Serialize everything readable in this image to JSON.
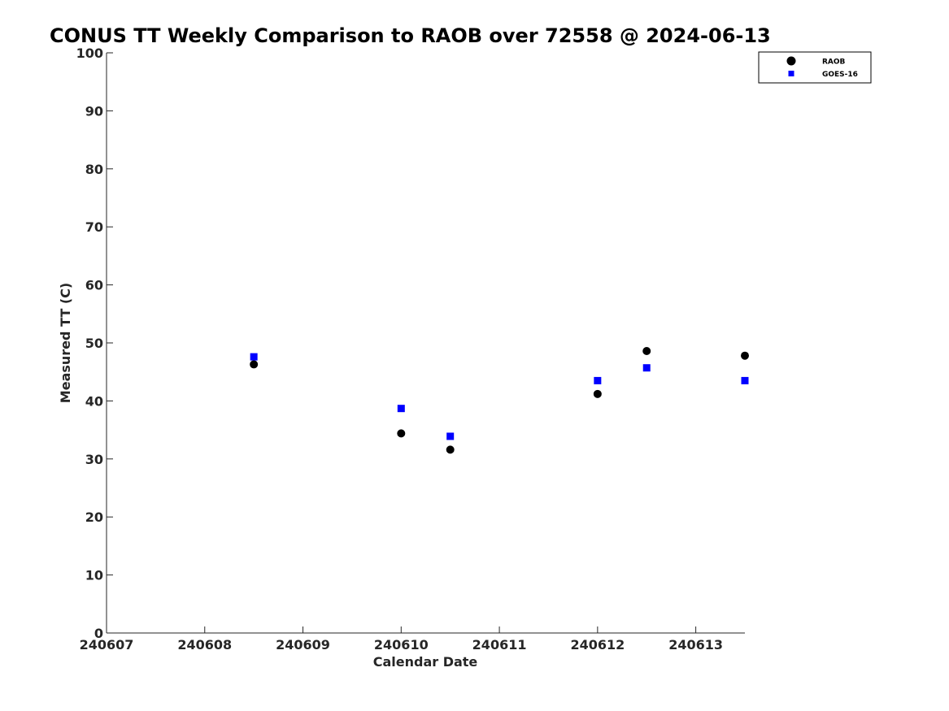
{
  "chart_data": {
    "type": "scatter",
    "title": "CONUS TT Weekly Comparison to RAOB over 72558 @ 2024-06-13",
    "xlabel": "Calendar Date",
    "ylabel": "Measured TT (C)",
    "xlim": [
      240607,
      240613.5
    ],
    "ylim": [
      0,
      100
    ],
    "xticks": [
      240607,
      240608,
      240609,
      240610,
      240611,
      240612,
      240613
    ],
    "xtick_labels": [
      "240607",
      "240608",
      "240609",
      "240610",
      "240611",
      "240612",
      "240613"
    ],
    "yticks": [
      0,
      10,
      20,
      30,
      40,
      50,
      60,
      70,
      80,
      90,
      100
    ],
    "ytick_labels": [
      "0",
      "10",
      "20",
      "30",
      "40",
      "50",
      "60",
      "70",
      "80",
      "90",
      "100"
    ],
    "grid": false,
    "legend_position": "top-right",
    "series": [
      {
        "name": "RAOB",
        "marker": "circle",
        "color": "#000000",
        "x": [
          240608.5,
          240610,
          240610.5,
          240612,
          240612.5,
          240613.5
        ],
        "y": [
          46.3,
          34.4,
          31.6,
          41.2,
          48.6,
          47.8
        ]
      },
      {
        "name": "GOES-16",
        "marker": "square",
        "color": "#0000ff",
        "x": [
          240608.5,
          240610,
          240610.5,
          240612,
          240612.5,
          240613.5
        ],
        "y": [
          47.6,
          38.7,
          33.9,
          43.5,
          45.7,
          43.5
        ]
      }
    ]
  }
}
